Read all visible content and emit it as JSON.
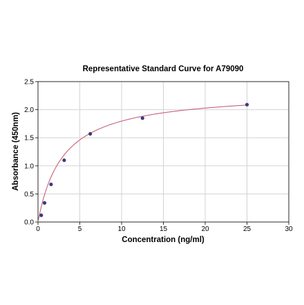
{
  "chart_data": {
    "type": "scatter",
    "title": "Representative Standard Curve for A79090",
    "xlabel": "Concentration (ng/ml)",
    "ylabel": "Absorbance (450nm)",
    "xlim": [
      0,
      30
    ],
    "ylim": [
      0,
      2.5
    ],
    "xticks": [
      0,
      5,
      10,
      15,
      20,
      25,
      30
    ],
    "yticks": [
      0.0,
      0.5,
      1.0,
      1.5,
      2.0,
      2.5
    ],
    "xtick_labels": [
      "0",
      "5",
      "10",
      "15",
      "20",
      "25",
      "30"
    ],
    "ytick_labels": [
      "0.0",
      "0.5",
      "1.0",
      "1.5",
      "2.0",
      "2.5"
    ],
    "grid": true,
    "series": [
      {
        "points": [
          {
            "x": 0.39,
            "y": 0.12
          },
          {
            "x": 0.78,
            "y": 0.34
          },
          {
            "x": 1.56,
            "y": 0.67
          },
          {
            "x": 3.13,
            "y": 1.1
          },
          {
            "x": 6.25,
            "y": 1.57
          },
          {
            "x": 12.5,
            "y": 1.85
          },
          {
            "x": 25,
            "y": 2.09
          }
        ],
        "marker_color": "#3b3b7a",
        "fit_curve": {
          "type": "hyperbolic",
          "bmax": 2.33,
          "kd": 2.97,
          "color": "#c8607a"
        }
      }
    ],
    "colors": {
      "grid": "#d3d3d3",
      "marker": "#3b3b7a",
      "curve": "#c8607a"
    }
  }
}
